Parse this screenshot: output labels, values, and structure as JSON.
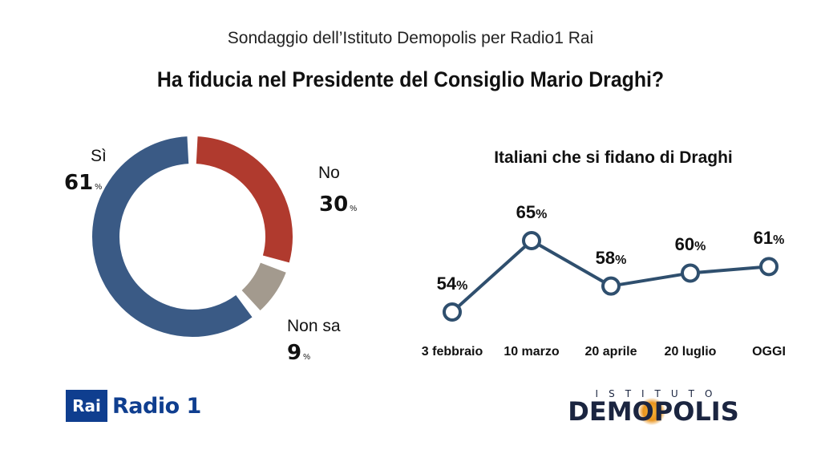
{
  "header": {
    "subtitle": "Sondaggio dell’Istituto Demopolis per Radio1 Rai",
    "title": "Ha fiducia nel Presidente del Consiglio Mario Draghi?"
  },
  "chart_data": [
    {
      "type": "pie",
      "variant": "donut",
      "title": "",
      "slices": [
        {
          "label": "Sì",
          "value": 61,
          "color": "#3a5a85"
        },
        {
          "label": "No",
          "value": 30,
          "color": "#b03a2e"
        },
        {
          "label": "Non sa",
          "value": 9,
          "color": "#a39a8e"
        }
      ],
      "unit": "%"
    },
    {
      "type": "line",
      "title": "Italiani che si fidano di Draghi",
      "categories": [
        "3 febbraio",
        "10 marzo",
        "20 aprile",
        "20 luglio",
        "OGGI"
      ],
      "series": [
        {
          "values": [
            54,
            65,
            58,
            60,
            61
          ],
          "color": "#2f4f6e"
        }
      ],
      "unit": "%"
    }
  ],
  "logos": {
    "rai_box": "Rai",
    "rai_radio": "Radio 1",
    "demopolis_top": "ISTITUTO",
    "demopolis_pre": "DEM",
    "demopolis_o": "O",
    "demopolis_post": "POLIS"
  }
}
